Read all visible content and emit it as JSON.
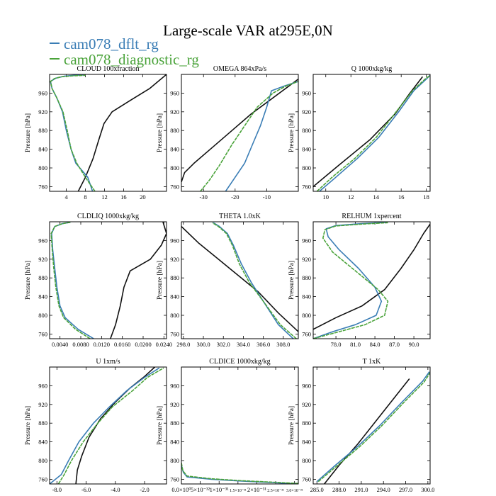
{
  "title": "Large-scale VAR at295E,0N",
  "legend": [
    {
      "label": "cam078_dflt_rg",
      "color": "#3a7db5"
    },
    {
      "label": "cam078_diagnostic_rg",
      "color": "#4aa33a"
    }
  ],
  "colors": {
    "obs": "#111111",
    "dflt": "#3a7db5",
    "diag": "#4aa33a"
  },
  "ylabel": "Pressure [hPa]",
  "chart_data": [
    {
      "type": "line",
      "title": "CLOUD  100xfraction",
      "ylim": [
        1000,
        750
      ],
      "xlim": [
        0.5,
        25
      ],
      "yticks": [
        760,
        800,
        840,
        880,
        920,
        960
      ],
      "xticks": [
        4,
        8,
        12,
        16,
        20
      ],
      "xticklabels": [
        "4",
        "8",
        "12",
        "16",
        "20"
      ],
      "series": [
        {
          "name": "obs",
          "x": [
            6.5,
            8.0,
            9.6,
            10.8,
            11.9,
            13.6,
            17.5,
            21.5,
            25.0
          ],
          "y": [
            750,
            780,
            820,
            860,
            895,
            920,
            945,
            970,
            1000
          ]
        },
        {
          "name": "cam078_dflt_rg",
          "x": [
            9.5,
            8.5,
            6.0,
            5.0,
            4.0,
            3.2,
            2.0,
            1.0,
            0.7,
            1.8,
            3.5,
            5.6,
            8.0
          ],
          "y": [
            750,
            780,
            810,
            840,
            880,
            920,
            950,
            970,
            985,
            992,
            996,
            998,
            999
          ]
        },
        {
          "name": "cam078_diagnostic_rg",
          "x": [
            10.0,
            8.0,
            6.2,
            5.0,
            4.2,
            3.3,
            2.0,
            1.0,
            0.7,
            1.5,
            3.0,
            5.5,
            8.0
          ],
          "y": [
            750,
            780,
            810,
            840,
            880,
            920,
            950,
            970,
            985,
            991,
            995,
            997,
            998
          ]
        }
      ]
    },
    {
      "type": "line",
      "title": "OMEGA  864xPa/s",
      "ylim": [
        1000,
        750
      ],
      "xlim": [
        -37,
        0
      ],
      "yticks": [
        760,
        800,
        840,
        880,
        920,
        960
      ],
      "xticks": [
        -30,
        -20,
        -10
      ],
      "xticklabels": [
        "-30",
        "-20",
        "-10"
      ],
      "series": [
        {
          "name": "obs",
          "x": [
            -37.0,
            -36.0,
            -33.0,
            -27.0,
            -21.0,
            -15.0,
            -9.0,
            -4.0,
            0.0
          ],
          "y": [
            770,
            790,
            810,
            845,
            880,
            915,
            945,
            970,
            990
          ]
        },
        {
          "name": "cam078_dflt_rg",
          "x": [
            -23.0,
            -20.0,
            -17.0,
            -14.5,
            -12.0,
            -10.0,
            -8.5,
            -4.5,
            0.0
          ],
          "y": [
            750,
            780,
            810,
            850,
            890,
            930,
            965,
            975,
            985
          ]
        },
        {
          "name": "cam078_diagnostic_rg",
          "x": [
            -31.0,
            -28.0,
            -25.0,
            -21.0,
            -17.0,
            -13.0,
            -8.0,
            -4.0,
            0.0
          ],
          "y": [
            750,
            775,
            805,
            850,
            890,
            930,
            960,
            975,
            985
          ]
        }
      ]
    },
    {
      "type": "line",
      "title": "Q  1000xkg/kg",
      "ylim": [
        1000,
        750
      ],
      "xlim": [
        9,
        18.3
      ],
      "yticks": [
        760,
        800,
        840,
        880,
        920,
        960
      ],
      "xticks": [
        10,
        12,
        14,
        16,
        18
      ],
      "xticklabels": [
        "10",
        "12",
        "14",
        "16",
        "18"
      ],
      "series": [
        {
          "name": "obs",
          "x": [
            9.0,
            11.0,
            13.5,
            15.5,
            16.7,
            17.7
          ],
          "y": [
            760,
            805,
            860,
            915,
            960,
            995
          ]
        },
        {
          "name": "cam078_dflt_rg",
          "x": [
            9.5,
            10.8,
            12.5,
            14.2,
            15.8,
            17.0,
            18.0,
            18.3
          ],
          "y": [
            750,
            780,
            820,
            865,
            920,
            965,
            990,
            998
          ]
        },
        {
          "name": "cam078_diagnostic_rg",
          "x": [
            9.3,
            10.5,
            12.3,
            14.0,
            15.6,
            16.9,
            17.9,
            18.3
          ],
          "y": [
            750,
            780,
            820,
            865,
            920,
            965,
            990,
            998
          ]
        }
      ]
    },
    {
      "type": "line",
      "title": "CLDLIQ  1000xkg/kg",
      "ylim": [
        1000,
        750
      ],
      "xlim": [
        0.002,
        0.0245
      ],
      "yticks": [
        760,
        800,
        840,
        880,
        920,
        960
      ],
      "xticks": [
        0.004,
        0.008,
        0.012,
        0.016,
        0.02,
        0.024
      ],
      "xticklabels": [
        "0.0040",
        "0.0080",
        "0.0120",
        "0.0160",
        "0.0200",
        "0.0240"
      ],
      "series": [
        {
          "name": "obs",
          "x": [
            0.0137,
            0.0147,
            0.0156,
            0.0163,
            0.0175,
            0.0214,
            0.0235,
            0.0245,
            0.0238
          ],
          "y": [
            750,
            780,
            820,
            860,
            895,
            920,
            950,
            975,
            1000
          ]
        },
        {
          "name": "cam078_dflt_rg",
          "x": [
            0.0105,
            0.0075,
            0.005,
            0.004,
            0.0034,
            0.003,
            0.0026,
            0.0024,
            0.003,
            0.0045,
            0.006
          ],
          "y": [
            750,
            770,
            795,
            820,
            860,
            900,
            940,
            975,
            990,
            996,
            999
          ]
        },
        {
          "name": "cam078_diagnostic_rg",
          "x": [
            0.0098,
            0.007,
            0.0047,
            0.0038,
            0.0032,
            0.0028,
            0.0025,
            0.0023,
            0.003,
            0.0045,
            0.006
          ],
          "y": [
            750,
            770,
            795,
            820,
            860,
            900,
            940,
            975,
            990,
            996,
            999
          ]
        }
      ]
    },
    {
      "type": "line",
      "title": "THETA  1.0xK",
      "ylim": [
        1000,
        750
      ],
      "xlim": [
        297.8,
        309.5
      ],
      "yticks": [
        760,
        800,
        840,
        880,
        920,
        960
      ],
      "xticks": [
        298,
        300,
        302,
        304,
        306,
        308
      ],
      "xticklabels": [
        "298.0",
        "300.0",
        "302.0",
        "304.0",
        "306.0",
        "308.0"
      ],
      "series": [
        {
          "name": "obs",
          "x": [
            309.5,
            307.5,
            305.5,
            303.5,
            301.5,
            299.5,
            297.8
          ],
          "y": [
            765,
            805,
            850,
            885,
            920,
            955,
            990
          ]
        },
        {
          "name": "cam078_dflt_rg",
          "x": [
            309.0,
            307.5,
            306.0,
            304.8,
            303.8,
            303.0,
            302.4,
            301.6,
            301.0
          ],
          "y": [
            750,
            780,
            830,
            870,
            910,
            950,
            975,
            990,
            998
          ]
        },
        {
          "name": "cam078_diagnostic_rg",
          "x": [
            309.3,
            307.7,
            306.0,
            304.6,
            303.6,
            302.9,
            302.3,
            301.5,
            300.9
          ],
          "y": [
            750,
            780,
            830,
            870,
            910,
            950,
            975,
            990,
            998
          ]
        }
      ]
    },
    {
      "type": "line",
      "title": "RELHUM  1xpercent",
      "ylim": [
        1000,
        750
      ],
      "xlim": [
        74.5,
        92.5
      ],
      "yticks": [
        760,
        800,
        840,
        880,
        920,
        960
      ],
      "xticks": [
        78,
        81,
        84,
        87,
        90
      ],
      "xticklabels": [
        "78.0",
        "81.0",
        "84.0",
        "87.0",
        "90.0"
      ],
      "series": [
        {
          "name": "obs",
          "x": [
            74.5,
            78.0,
            82.0,
            85.5,
            88.0,
            90.0,
            91.5,
            92.5
          ],
          "y": [
            770,
            795,
            820,
            855,
            900,
            940,
            975,
            995
          ]
        },
        {
          "name": "cam078_dflt_rg",
          "x": [
            74.5,
            77.5,
            81.0,
            84.2,
            85.0,
            84.0,
            81.5,
            78.5,
            76.8,
            76.5,
            78.0,
            82.0,
            86.0
          ],
          "y": [
            750,
            765,
            780,
            800,
            830,
            860,
            900,
            940,
            968,
            985,
            992,
            996,
            999
          ]
        },
        {
          "name": "cam078_diagnostic_rg",
          "x": [
            74.5,
            78.5,
            82.5,
            85.5,
            86.0,
            84.5,
            81.0,
            77.5,
            76.0,
            76.3,
            78.0,
            82.0,
            86.0
          ],
          "y": [
            750,
            765,
            780,
            800,
            830,
            855,
            895,
            935,
            965,
            983,
            991,
            995,
            998
          ]
        }
      ]
    },
    {
      "type": "line",
      "title": "U  1xm/s",
      "ylim": [
        1000,
        750
      ],
      "xlim": [
        -8.5,
        -0.5
      ],
      "yticks": [
        760,
        800,
        840,
        880,
        920,
        960
      ],
      "xticks": [
        -8,
        -6,
        -4,
        -2
      ],
      "xticklabels": [
        "-8.0",
        "-6.0",
        "-4.0",
        "-2.0"
      ],
      "series": [
        {
          "name": "obs",
          "x": [
            -6.7,
            -6.6,
            -6.3,
            -5.8,
            -5.0,
            -4.0,
            -3.0,
            -2.0,
            -1.3
          ],
          "y": [
            750,
            780,
            810,
            850,
            890,
            925,
            955,
            980,
            1000
          ]
        },
        {
          "name": "cam078_dflt_rg",
          "x": [
            -8.5,
            -7.7,
            -7.2,
            -6.5,
            -5.5,
            -4.4,
            -3.2,
            -2.0,
            -1.0
          ],
          "y": [
            750,
            770,
            800,
            840,
            880,
            915,
            950,
            978,
            998
          ]
        },
        {
          "name": "cam078_diagnostic_rg",
          "x": [
            -7.9,
            -7.5,
            -7.0,
            -6.2,
            -5.2,
            -4.2,
            -2.8,
            -1.8,
            -0.7
          ],
          "y": [
            750,
            770,
            800,
            840,
            880,
            915,
            950,
            978,
            998
          ]
        }
      ]
    },
    {
      "type": "line",
      "title": "CLDICE  1000xkg/kg",
      "ylim": [
        1000,
        750
      ],
      "xlim": [
        0,
        3.1e-31
      ],
      "yticks": [
        760,
        800,
        840,
        880,
        920,
        960
      ],
      "xticks": [
        0,
        5e-32,
        1e-31,
        1.5e-31,
        2e-31,
        2.5e-31,
        3e-31
      ],
      "xticklabels": [
        "0.0×10⁰",
        "5×10⁻³²",
        "1×10⁻³¹",
        "1.5×10⁻³¹",
        "2×10⁻³¹",
        "2.5×10⁻³¹",
        "3.0×10⁻³¹"
      ],
      "series": [
        {
          "name": "cam078_dflt_rg",
          "x": [
            0,
            5e-33,
            1.5e-32,
            8e-32,
            1.6e-31,
            2.4e-31,
            3.1e-31
          ],
          "y": [
            790,
            775,
            765,
            760,
            756,
            753,
            750
          ]
        },
        {
          "name": "cam078_diagnostic_rg",
          "x": [
            0,
            4e-33,
            1.5e-32,
            8e-32,
            1.6e-31,
            2.4e-31,
            3.1e-31
          ],
          "y": [
            795,
            778,
            767,
            761,
            757,
            754,
            751
          ]
        }
      ]
    },
    {
      "type": "line",
      "title": "T  1xK",
      "ylim": [
        1000,
        750
      ],
      "xlim": [
        284.5,
        300.3
      ],
      "yticks": [
        760,
        800,
        840,
        880,
        920,
        960
      ],
      "xticks": [
        285,
        288,
        291,
        294,
        297,
        300
      ],
      "xticklabels": [
        "285.0",
        "288.0",
        "291.0",
        "294.0",
        "297.0",
        "300.0"
      ],
      "series": [
        {
          "name": "obs",
          "x": [
            286.0,
            288.0,
            290.5,
            293.0,
            295.5,
            297.5
          ],
          "y": [
            750,
            790,
            835,
            885,
            935,
            975
          ]
        },
        {
          "name": "cam078_dflt_rg",
          "x": [
            285.0,
            287.5,
            290.5,
            293.5,
            296.5,
            299.3,
            300.2
          ],
          "y": [
            755,
            790,
            830,
            875,
            925,
            970,
            990
          ]
        },
        {
          "name": "cam078_diagnostic_rg",
          "x": [
            285.2,
            287.8,
            290.8,
            293.8,
            296.8,
            299.5,
            300.3
          ],
          "y": [
            755,
            790,
            830,
            875,
            925,
            968,
            988
          ]
        }
      ]
    }
  ]
}
